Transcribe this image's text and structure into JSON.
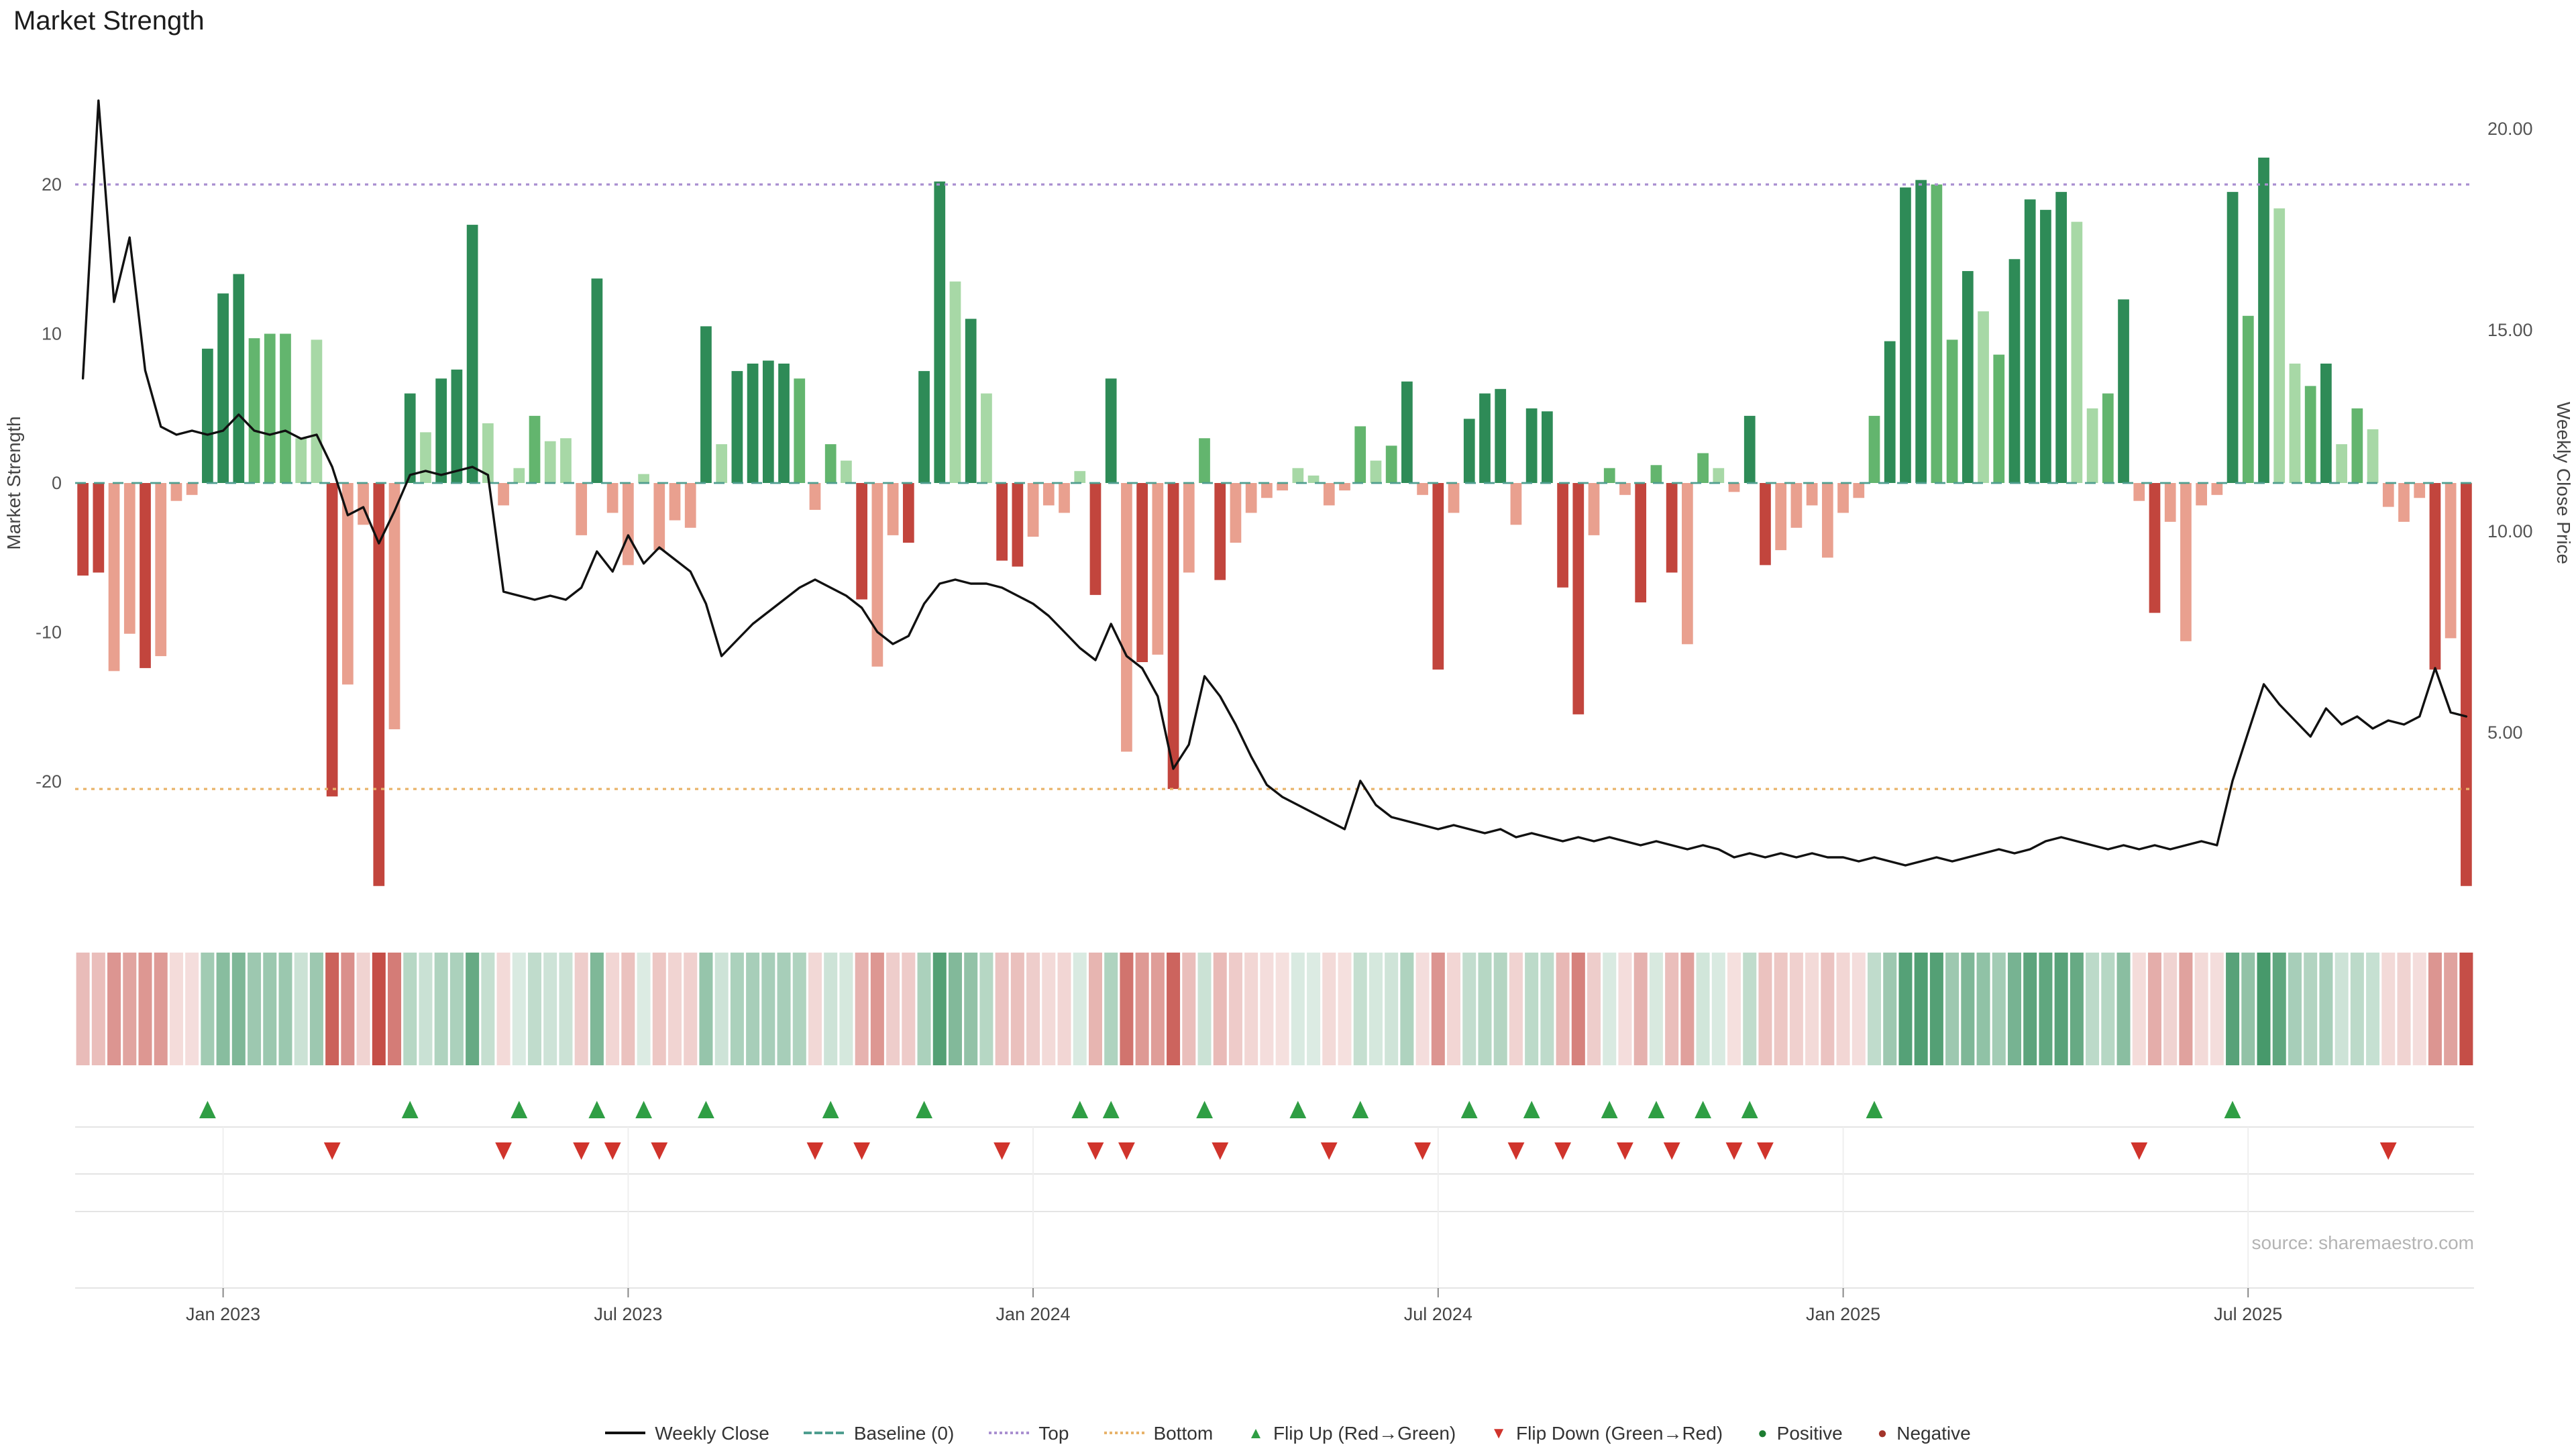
{
  "title": "Market Strength",
  "source": "source: sharemaestro.com",
  "colors": {
    "positive_dark": "#2e8b57",
    "positive_mid": "#63b56e",
    "positive_light": "#a7d8a6",
    "negative_dark": "#c2453d",
    "negative_mid": "#d87f6e",
    "negative_light": "#e9a08f",
    "weekly_close": "#111111",
    "baseline": "#4f9e8f",
    "top": "#a98fd0",
    "bottom": "#e8b36a",
    "flip_up": "#2f9e44",
    "flip_down": "#d0342c",
    "legend_positive": "#1e7d32",
    "legend_negative": "#a3352c",
    "tick_text": "#555555",
    "grid": "#e4e4e4"
  },
  "legend": [
    {
      "id": "weekly-close",
      "label": "Weekly Close",
      "marker": "line",
      "color": "#111111"
    },
    {
      "id": "baseline",
      "label": "Baseline (0)",
      "marker": "dash",
      "color": "#4f9e8f"
    },
    {
      "id": "top",
      "label": "Top",
      "marker": "dot",
      "color": "#a98fd0"
    },
    {
      "id": "bottom",
      "label": "Bottom",
      "marker": "dot",
      "color": "#e8b36a"
    },
    {
      "id": "flip-up",
      "label": "Flip Up (Red→Green)",
      "marker": "tri-up",
      "color": "#2f9e44"
    },
    {
      "id": "flip-down",
      "label": "Flip Down (Green→Red)",
      "marker": "tri-down",
      "color": "#d0342c"
    },
    {
      "id": "positive",
      "label": "Positive",
      "marker": "circle",
      "color": "#1e7d32"
    },
    {
      "id": "negative",
      "label": "Negative",
      "marker": "circle",
      "color": "#a3352c"
    }
  ],
  "chart_data": {
    "type": "bar",
    "title": "Market Strength",
    "subtitle": "Weekly market strength bars with weekly close price overlay, heatmap strip and flip markers",
    "n_weeks": 154,
    "left_axis": {
      "label": "Market Strength",
      "ticks": [
        20,
        10,
        0,
        -10,
        -20
      ],
      "ylim": [
        -29,
        28.4
      ]
    },
    "right_axis": {
      "label": "Weekly Close Price",
      "ticks": [
        "20.00",
        "15.00",
        "10.00",
        "5.00"
      ],
      "ylim": [
        0.5,
        21.7
      ]
    },
    "thresholds": {
      "baseline": 0,
      "top": 20,
      "bottom": -20.5
    },
    "xticks": [
      {
        "label": "Jan 2023",
        "week": 9
      },
      {
        "label": "Jul 2023",
        "week": 35
      },
      {
        "label": "Jan 2024",
        "week": 61
      },
      {
        "label": "Jul 2024",
        "week": 87
      },
      {
        "label": "Jan 2025",
        "week": 113
      },
      {
        "label": "Jul 2025",
        "week": 139
      }
    ],
    "strength": [
      -6.2,
      -6.0,
      -12.6,
      -10.1,
      -12.4,
      -11.6,
      -1.2,
      -0.8,
      9.0,
      12.7,
      14.0,
      9.7,
      10.0,
      10.0,
      3.0,
      9.6,
      -21.0,
      -13.5,
      -2.8,
      -27.0,
      -16.5,
      6.0,
      3.4,
      7.0,
      7.6,
      17.3,
      4.0,
      -1.5,
      1.0,
      4.5,
      2.8,
      3.0,
      -3.5,
      13.7,
      -2.0,
      -5.5,
      0.6,
      -4.5,
      -2.5,
      -3.0,
      10.5,
      2.6,
      7.5,
      8.0,
      8.2,
      8.0,
      7.0,
      -1.8,
      2.6,
      1.5,
      -7.8,
      -12.3,
      -3.5,
      -4.0,
      7.5,
      20.2,
      13.5,
      11.0,
      6.0,
      -5.2,
      -5.6,
      -3.6,
      -1.5,
      -2.0,
      0.8,
      -7.5,
      7.0,
      -18.0,
      -12.0,
      -11.5,
      -20.5,
      -6.0,
      3.0,
      -6.5,
      -4.0,
      -2.0,
      -1.0,
      -0.5,
      1.0,
      0.5,
      -1.5,
      -0.5,
      3.8,
      1.5,
      2.5,
      6.8,
      -0.8,
      -12.5,
      -2.0,
      4.3,
      6.0,
      6.3,
      -2.8,
      5.0,
      4.8,
      -7.0,
      -15.5,
      -3.5,
      1.0,
      -0.8,
      -8.0,
      1.2,
      -6.0,
      -10.8,
      2.0,
      1.0,
      -0.6,
      4.5,
      -5.5,
      -4.5,
      -3.0,
      -1.5,
      -5.0,
      -2.0,
      -1.0,
      4.5,
      9.5,
      19.8,
      20.3,
      20.0,
      9.6,
      14.2,
      11.5,
      8.6,
      15.0,
      19.0,
      18.3,
      19.5,
      17.5,
      5.0,
      6.0,
      12.3,
      -1.2,
      -8.7,
      -2.6,
      -10.6,
      -1.5,
      -0.8,
      19.5,
      11.2,
      21.8,
      18.4,
      8.0,
      6.5,
      8.0,
      2.6,
      5.0,
      3.6,
      -1.6,
      -2.6,
      -1.0,
      -12.5,
      -10.4,
      -27.0
    ],
    "bar_shades": [
      "d",
      "d",
      "l",
      "l",
      "d",
      "l",
      "l",
      "l",
      "d",
      "d",
      "d",
      "m",
      "m",
      "m",
      "l",
      "l",
      "d",
      "l",
      "l",
      "d",
      "l",
      "d",
      "l",
      "d",
      "d",
      "d",
      "l",
      "l",
      "l",
      "m",
      "l",
      "l",
      "l",
      "d",
      "l",
      "l",
      "l",
      "l",
      "l",
      "l",
      "d",
      "l",
      "d",
      "d",
      "d",
      "d",
      "m",
      "l",
      "m",
      "l",
      "d",
      "l",
      "l",
      "d",
      "d",
      "d",
      "l",
      "d",
      "l",
      "d",
      "d",
      "l",
      "l",
      "l",
      "l",
      "d",
      "d",
      "l",
      "d",
      "l",
      "d",
      "l",
      "m",
      "d",
      "l",
      "l",
      "l",
      "l",
      "l",
      "l",
      "l",
      "l",
      "m",
      "l",
      "m",
      "d",
      "l",
      "d",
      "l",
      "d",
      "d",
      "d",
      "l",
      "d",
      "d",
      "d",
      "d",
      "l",
      "m",
      "l",
      "d",
      "m",
      "d",
      "l",
      "m",
      "l",
      "l",
      "d",
      "d",
      "l",
      "l",
      "l",
      "l",
      "l",
      "l",
      "m",
      "d",
      "d",
      "d",
      "m",
      "m",
      "d",
      "l",
      "m",
      "d",
      "d",
      "d",
      "d",
      "l",
      "l",
      "m",
      "d",
      "l",
      "d",
      "l",
      "l",
      "l",
      "l",
      "d",
      "m",
      "d",
      "l",
      "l",
      "m",
      "d",
      "l",
      "m",
      "l",
      "l",
      "l",
      "l",
      "d",
      "l",
      "d"
    ],
    "weekly_close": [
      13.8,
      20.7,
      15.7,
      17.3,
      14.0,
      12.6,
      12.4,
      12.5,
      12.4,
      12.5,
      12.9,
      12.5,
      12.4,
      12.5,
      12.3,
      12.4,
      11.6,
      10.4,
      10.6,
      9.7,
      10.5,
      11.4,
      11.5,
      11.4,
      11.5,
      11.6,
      11.4,
      8.5,
      8.4,
      8.3,
      8.4,
      8.3,
      8.6,
      9.5,
      9.0,
      9.9,
      9.2,
      9.6,
      9.3,
      9.0,
      8.2,
      6.9,
      7.3,
      7.7,
      8.0,
      8.3,
      8.6,
      8.8,
      8.6,
      8.4,
      8.1,
      7.5,
      7.2,
      7.4,
      8.2,
      8.7,
      8.8,
      8.7,
      8.7,
      8.6,
      8.4,
      8.2,
      7.9,
      7.5,
      7.1,
      6.8,
      7.7,
      6.9,
      6.6,
      5.9,
      4.1,
      4.7,
      6.4,
      5.9,
      5.2,
      4.4,
      3.7,
      3.4,
      3.2,
      3.0,
      2.8,
      2.6,
      3.8,
      3.2,
      2.9,
      2.8,
      2.7,
      2.6,
      2.7,
      2.6,
      2.5,
      2.6,
      2.4,
      2.5,
      2.4,
      2.3,
      2.4,
      2.3,
      2.4,
      2.3,
      2.2,
      2.3,
      2.2,
      2.1,
      2.2,
      2.1,
      1.9,
      2.0,
      1.9,
      2.0,
      1.9,
      2.0,
      1.9,
      1.9,
      1.8,
      1.9,
      1.8,
      1.7,
      1.8,
      1.9,
      1.8,
      1.9,
      2.0,
      2.1,
      2.0,
      2.1,
      2.3,
      2.4,
      2.3,
      2.2,
      2.1,
      2.2,
      2.1,
      2.2,
      2.1,
      2.2,
      2.3,
      2.2,
      3.8,
      5.0,
      6.2,
      5.7,
      5.3,
      4.9,
      5.6,
      5.2,
      5.4,
      5.1,
      5.3,
      5.2,
      5.4,
      6.6,
      5.5,
      5.4
    ],
    "flip_up_weeks": [
      8,
      21,
      28,
      33,
      36,
      40,
      48,
      54,
      64,
      66,
      72,
      78,
      82,
      89,
      93,
      98,
      101,
      104,
      107,
      115,
      138
    ],
    "flip_down_weeks": [
      16,
      27,
      32,
      34,
      37,
      47,
      50,
      59,
      65,
      67,
      73,
      80,
      86,
      92,
      95,
      99,
      102,
      106,
      108,
      132,
      148
    ],
    "grid": "off",
    "legend_position": "bottom-center"
  }
}
